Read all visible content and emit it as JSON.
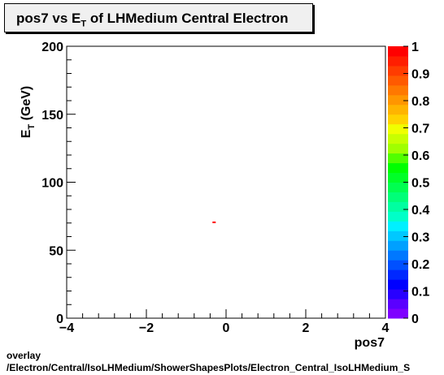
{
  "chart_data": {
    "type": "heatmap",
    "title": {
      "prefix": "pos7 vs E",
      "subscript": "T",
      "suffix": " of LHMedium Central  Electron"
    },
    "xlabel": "pos7",
    "ylabel": {
      "main": "E",
      "subscript": "T",
      "suffix": " (GeV)"
    },
    "xlim": [
      -4,
      4
    ],
    "ylim": [
      0,
      200
    ],
    "x_ticks": [
      "−4",
      "−2",
      "0",
      "2",
      "4"
    ],
    "y_ticks": [
      "0",
      "50",
      "100",
      "150",
      "200"
    ],
    "colorbar": {
      "range": [
        0,
        1
      ],
      "ticks": [
        "0",
        "0.1",
        "0.2",
        "0.3",
        "0.4",
        "0.5",
        "0.6",
        "0.7",
        "0.8",
        "0.9",
        "1"
      ],
      "colors": [
        "#7f00ff",
        "#5a00ff",
        "#2800ff",
        "#0000ff",
        "#0028ff",
        "#0050ff",
        "#0078ff",
        "#00a0ff",
        "#00c8ff",
        "#00f0ff",
        "#00ffc8",
        "#00ffa0",
        "#00ff78",
        "#00ff50",
        "#00ff28",
        "#00ff00",
        "#50ff00",
        "#a0ff00",
        "#c8ff00",
        "#f0ff00",
        "#ffd200",
        "#ffb400",
        "#ff9600",
        "#ff7800",
        "#ff5a00",
        "#ff3c00",
        "#ff1e00",
        "#ff0000"
      ]
    },
    "cells": [
      {
        "x": -0.3,
        "y": 70.5,
        "value": 1.0,
        "color": "#ff0000"
      }
    ],
    "grid": false
  },
  "footer": {
    "line1": "overlay",
    "line2": "/Electron/Central/IsoLHMedium/ShowerShapesPlots/Electron_Central_IsoLHMedium_S"
  }
}
